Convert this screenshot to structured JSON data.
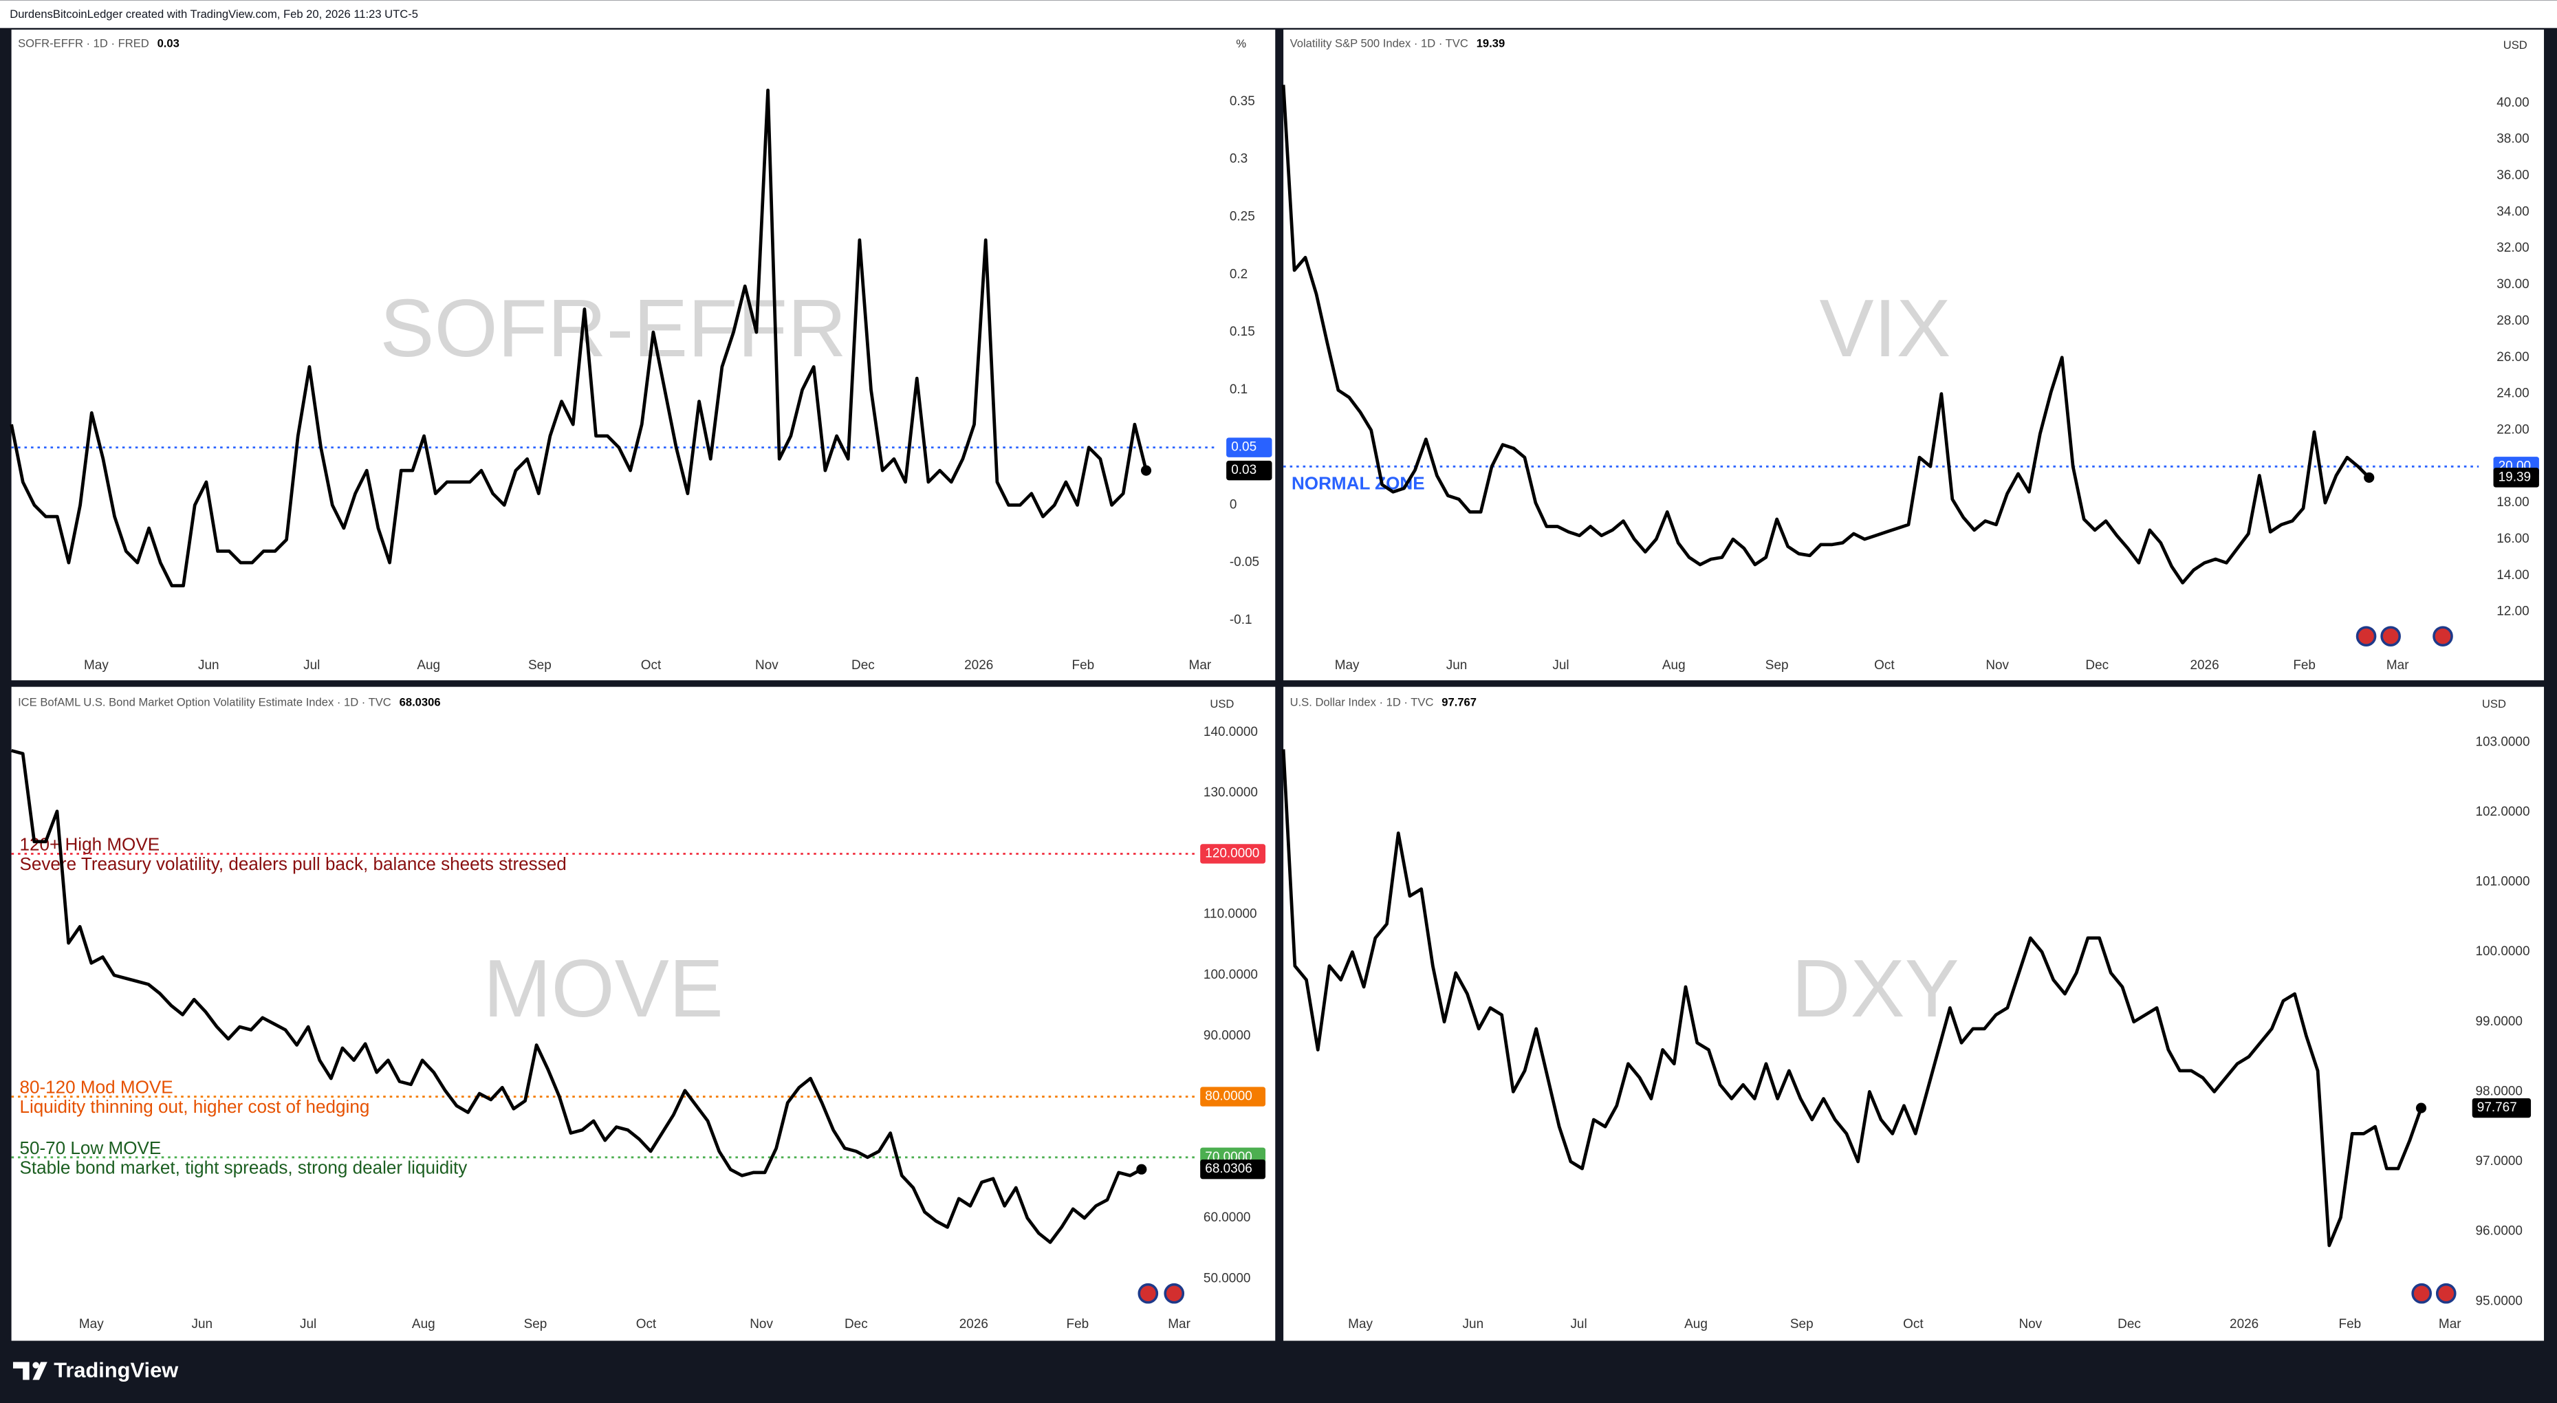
{
  "caption": "DurdensBitcoinLedger created with TradingView.com, Feb 20, 2026 11:23 UTC-5",
  "brand": "TradingView",
  "chart_data": [
    {
      "type": "line",
      "title": "SOFR-EFFR · 1D · FRED",
      "watermark": "SOFR-EFFR",
      "unit": "%",
      "color": "#000000",
      "grid": false,
      "values": [
        0.07,
        0.02,
        0.0,
        -0.01,
        -0.01,
        -0.05,
        0.0,
        0.08,
        0.04,
        -0.01,
        -0.04,
        -0.05,
        -0.02,
        -0.05,
        -0.07,
        -0.07,
        0.0,
        0.02,
        -0.04,
        -0.04,
        -0.05,
        -0.05,
        -0.04,
        -0.04,
        -0.03,
        0.06,
        0.12,
        0.05,
        0.0,
        -0.02,
        0.01,
        0.03,
        -0.02,
        -0.05,
        0.03,
        0.03,
        0.06,
        0.01,
        0.02,
        0.02,
        0.02,
        0.03,
        0.01,
        0.0,
        0.03,
        0.04,
        0.01,
        0.06,
        0.09,
        0.07,
        0.17,
        0.06,
        0.06,
        0.05,
        0.03,
        0.07,
        0.15,
        0.1,
        0.05,
        0.01,
        0.09,
        0.04,
        0.12,
        0.15,
        0.19,
        0.15,
        0.36,
        0.04,
        0.06,
        0.1,
        0.12,
        0.03,
        0.06,
        0.04,
        0.23,
        0.1,
        0.03,
        0.04,
        0.02,
        0.11,
        0.02,
        0.03,
        0.02,
        0.04,
        0.07,
        0.23,
        0.02,
        0.0,
        0.0,
        0.01,
        -0.01,
        0.0,
        0.02,
        0.0,
        0.05,
        0.04,
        0.0,
        0.01,
        0.07,
        0.03
      ],
      "xlim": [
        0,
        105
      ],
      "xticks": [
        {
          "value": 7.4,
          "label": "May"
        },
        {
          "value": 17.2,
          "label": "Jun"
        },
        {
          "value": 26.2,
          "label": "Jul"
        },
        {
          "value": 36.4,
          "label": "Aug"
        },
        {
          "value": 46.1,
          "label": "Sep"
        },
        {
          "value": 55.8,
          "label": "Oct"
        },
        {
          "value": 65.9,
          "label": "Nov"
        },
        {
          "value": 74.3,
          "label": "Dec"
        },
        {
          "value": 84.4,
          "label": "2026"
        },
        {
          "value": 93.5,
          "label": "Feb"
        },
        {
          "value": 103.7,
          "label": "Mar"
        }
      ],
      "ylim": [
        -0.128,
        0.414
      ],
      "yticks": [
        0.35,
        0.3,
        0.25,
        0.2,
        0.15,
        0.1,
        0,
        -0.05,
        -0.1
      ],
      "hlines": [
        {
          "value": 0.05,
          "color": "#2962ff"
        }
      ],
      "annotations": []
    },
    {
      "type": "line",
      "title": "Volatility S&P 500 Index · 1D · TVC",
      "watermark": "VIX",
      "unit": "USD",
      "color": "#000000",
      "grid": false,
      "values": [
        41,
        30.8,
        31.5,
        29.5,
        26.8,
        24.2,
        23.8,
        23,
        22,
        19,
        18.6,
        18.8,
        19.8,
        21.5,
        19.5,
        18.4,
        18.2,
        17.5,
        17.5,
        20,
        21.2,
        21,
        20.5,
        18,
        16.7,
        16.7,
        16.4,
        16.2,
        16.7,
        16.2,
        16.5,
        17,
        16,
        15.3,
        16,
        17.5,
        15.8,
        15,
        14.6,
        14.9,
        15,
        16,
        15.5,
        14.6,
        15,
        17.1,
        15.6,
        15.2,
        15.1,
        15.7,
        15.7,
        15.8,
        16.3,
        16,
        16.2,
        16.4,
        16.6,
        16.8,
        20.5,
        20,
        24,
        18.2,
        17.2,
        16.5,
        17,
        16.8,
        18.5,
        19.6,
        18.6,
        21.8,
        24.1,
        26,
        20,
        17.1,
        16.5,
        17,
        16.2,
        15.5,
        14.7,
        16.5,
        15.8,
        14.5,
        13.6,
        14.3,
        14.7,
        14.9,
        14.7,
        15.5,
        16.3,
        19.5,
        16.4,
        16.8,
        17,
        17.7,
        21.9,
        18,
        19.5,
        20.5,
        20,
        19.39
      ],
      "xlim": [
        0,
        109
      ],
      "xticks": [
        {
          "value": 5.8,
          "label": "May"
        },
        {
          "value": 15.8,
          "label": "Jun"
        },
        {
          "value": 25.3,
          "label": "Jul"
        },
        {
          "value": 35.6,
          "label": "Aug"
        },
        {
          "value": 45,
          "label": "Sep"
        },
        {
          "value": 54.8,
          "label": "Oct"
        },
        {
          "value": 65.1,
          "label": "Nov"
        },
        {
          "value": 74.2,
          "label": "Dec"
        },
        {
          "value": 84,
          "label": "2026"
        },
        {
          "value": 93.1,
          "label": "Feb"
        },
        {
          "value": 101.6,
          "label": "Mar"
        }
      ],
      "ylim": [
        9.76,
        44.13
      ],
      "yticks": [
        {
          "value": 40,
          "label": "40.00"
        },
        {
          "value": 38,
          "label": "38.00"
        },
        {
          "value": 36,
          "label": "36.00"
        },
        {
          "value": 34,
          "label": "34.00"
        },
        {
          "value": 32,
          "label": "32.00"
        },
        {
          "value": 30,
          "label": "30.00"
        },
        {
          "value": 28,
          "label": "28.00"
        },
        {
          "value": 26,
          "label": "26.00"
        },
        {
          "value": 24,
          "label": "24.00"
        },
        {
          "value": 22,
          "label": "22.00"
        },
        {
          "value": 18,
          "label": "18.00"
        },
        {
          "value": 16,
          "label": "16.00"
        },
        {
          "value": 14,
          "label": "14.00"
        },
        {
          "value": 12,
          "label": "12.00"
        }
      ],
      "hlines": [
        {
          "value": 20,
          "label": "20.00",
          "color": "#2962ff"
        }
      ],
      "annotations": [
        {
          "title": "NORMAL ZONE",
          "color": "#2962ff"
        }
      ]
    },
    {
      "type": "line",
      "title": "ICE BofAML U.S. Bond Market Option Volatility Estimate Index · 1D · TVC",
      "watermark": "MOVE",
      "unit": "USD",
      "color": "#000000",
      "grid": false,
      "values": [
        137,
        136.5,
        122,
        122,
        127,
        105.3,
        108,
        102,
        103,
        100,
        99.5,
        99,
        98.5,
        97,
        95,
        93.5,
        96,
        94,
        91.5,
        89.5,
        91.5,
        91,
        93,
        92,
        91,
        88.5,
        91.5,
        86,
        83,
        88,
        86,
        88.7,
        84,
        86,
        82.5,
        82,
        86,
        84,
        81,
        78.5,
        77.4,
        80.5,
        79.5,
        81.5,
        78,
        79.3,
        88.5,
        84.5,
        80,
        74,
        74.5,
        76,
        72.8,
        75,
        74.5,
        73,
        71,
        74,
        77,
        81,
        78.5,
        76,
        71,
        68,
        67,
        67.5,
        67.5,
        71.5,
        79,
        81.5,
        83,
        79,
        74.5,
        71.5,
        71,
        70,
        71,
        74,
        67,
        65,
        61,
        59.5,
        58.5,
        63.2,
        62,
        65.9,
        66.5,
        62,
        65,
        60,
        57.5,
        56,
        58.5,
        61.5,
        60,
        62,
        63,
        67.5,
        67,
        68.0306
      ],
      "xlim": [
        0,
        104
      ],
      "xticks": [
        {
          "value": 7,
          "label": "May"
        },
        {
          "value": 16.7,
          "label": "Jun"
        },
        {
          "value": 26,
          "label": "Jul"
        },
        {
          "value": 36.1,
          "label": "Aug"
        },
        {
          "value": 45.9,
          "label": "Sep"
        },
        {
          "value": 55.6,
          "label": "Oct"
        },
        {
          "value": 65.7,
          "label": "Nov"
        },
        {
          "value": 74,
          "label": "Dec"
        },
        {
          "value": 84.3,
          "label": "2026"
        },
        {
          "value": 93.4,
          "label": "Feb"
        },
        {
          "value": 102.3,
          "label": "Mar"
        }
      ],
      "ylim": [
        45.7,
        142.4
      ],
      "yticks": [
        {
          "value": 140,
          "label": "140.0000"
        },
        {
          "value": 130,
          "label": "130.0000"
        },
        {
          "value": 110,
          "label": "110.0000"
        },
        {
          "value": 100,
          "label": "100.0000"
        },
        {
          "value": 90,
          "label": "90.0000"
        },
        {
          "value": 60,
          "label": "60.0000"
        },
        {
          "value": 50,
          "label": "50.0000"
        }
      ],
      "hlines": [
        {
          "value": 120,
          "label": "120.0000",
          "color": "#f23645"
        },
        {
          "value": 80,
          "label": "80.0000",
          "color": "#f57c00"
        },
        {
          "value": 70,
          "label": "70.0000",
          "color": "#4caf50"
        }
      ],
      "annotations": [
        {
          "title": "120+ High MOVE",
          "text": "Severe Treasury volatility, dealers pull back, balance sheets stressed",
          "color": "#880e0e"
        },
        {
          "title": "80-120 Mod MOVE",
          "text": "Liquidity thinning out, higher cost of hedging",
          "color": "#e65100"
        },
        {
          "title": "50-70 Low MOVE",
          "text": "Stable bond market, tight spreads, strong dealer liquidity",
          "color": "#1b5e20"
        }
      ]
    },
    {
      "type": "line",
      "title": "U.S. Dollar Index · 1D · TVC",
      "watermark": "DXY",
      "unit": "USD",
      "color": "#000000",
      "grid": false,
      "values": [
        102.9,
        99.8,
        99.6,
        98.6,
        99.8,
        99.6,
        100.0,
        99.5,
        100.2,
        100.4,
        101.7,
        100.8,
        100.9,
        99.8,
        99,
        99.7,
        99.4,
        98.9,
        99.2,
        99.1,
        98,
        98.3,
        98.9,
        98.2,
        97.5,
        97,
        96.9,
        97.6,
        97.5,
        97.8,
        98.4,
        98.2,
        97.9,
        98.6,
        98.4,
        99.5,
        98.7,
        98.6,
        98.1,
        97.9,
        98.1,
        97.9,
        98.4,
        97.9,
        98.3,
        97.9,
        97.6,
        97.9,
        97.6,
        97.4,
        97,
        98,
        97.6,
        97.4,
        97.8,
        97.4,
        98,
        98.6,
        99.2,
        98.7,
        98.9,
        98.9,
        99.1,
        99.2,
        99.7,
        100.2,
        100,
        99.6,
        99.4,
        99.7,
        100.2,
        100.2,
        99.7,
        99.5,
        99,
        99.1,
        99.2,
        98.6,
        98.3,
        98.3,
        98.2,
        98,
        98.2,
        98.4,
        98.5,
        98.7,
        98.9,
        99.3,
        99.4,
        98.8,
        98.3,
        95.8,
        96.2,
        97.4,
        97.4,
        97.5,
        96.9,
        96.9,
        97.3,
        97.767
      ],
      "xlim": [
        0,
        103.3
      ],
      "xticks": [
        {
          "value": 6.7,
          "label": "May"
        },
        {
          "value": 16.5,
          "label": "Jun"
        },
        {
          "value": 25.7,
          "label": "Jul"
        },
        {
          "value": 35.9,
          "label": "Aug"
        },
        {
          "value": 45.1,
          "label": "Sep"
        },
        {
          "value": 54.8,
          "label": "Oct"
        },
        {
          "value": 65,
          "label": "Nov"
        },
        {
          "value": 73.6,
          "label": "Dec"
        },
        {
          "value": 83.6,
          "label": "2026"
        },
        {
          "value": 92.8,
          "label": "Feb"
        },
        {
          "value": 101.5,
          "label": "Mar"
        }
      ],
      "ylim": [
        94.95,
        103.35
      ],
      "yticks": [
        {
          "value": 103,
          "label": "103.0000"
        },
        {
          "value": 102,
          "label": "102.0000"
        },
        {
          "value": 101,
          "label": "101.0000"
        },
        {
          "value": 100,
          "label": "100.0000"
        },
        {
          "value": 99,
          "label": "99.0000"
        },
        {
          "value": 98,
          "label": "98.0000"
        },
        {
          "value": 97,
          "label": "97.0000"
        },
        {
          "value": 96,
          "label": "96.0000"
        },
        {
          "value": 95,
          "label": "95.0000"
        }
      ],
      "hlines": [],
      "annotations": []
    }
  ]
}
